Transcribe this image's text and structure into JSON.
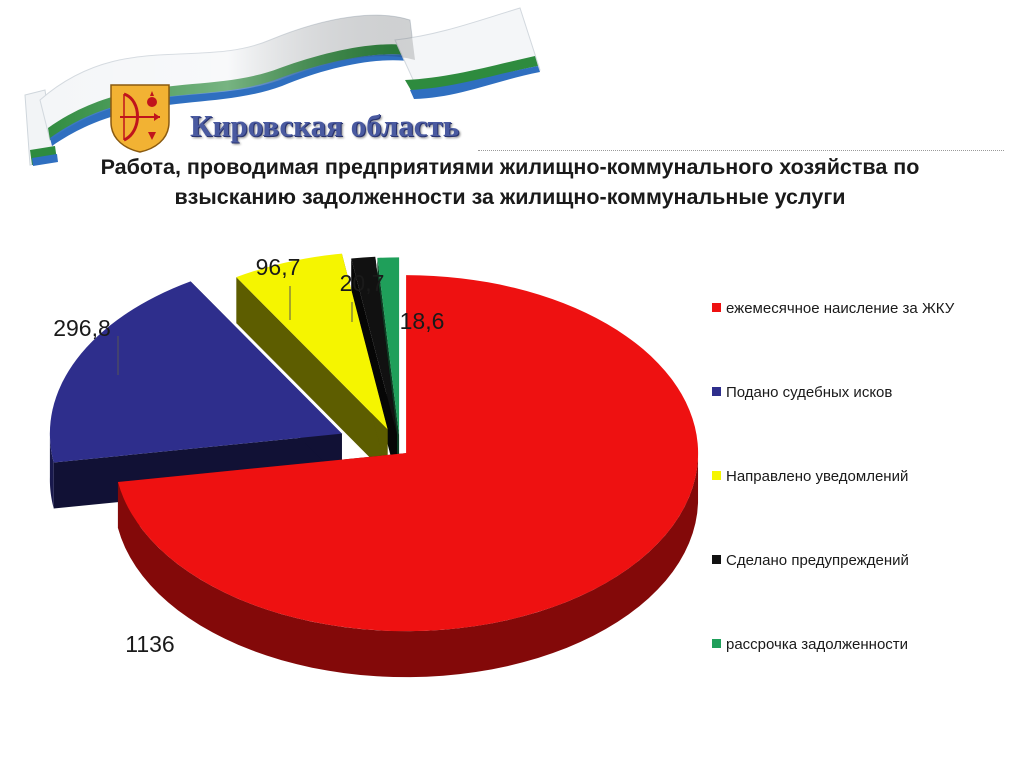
{
  "header": {
    "org_name": "Кировская область",
    "emblem_icon": "kirov-coat-of-arms-icon",
    "ribbon_icon": "flag-ribbon-icon",
    "ribbon_colors": [
      "#ffffff",
      "#2e8b3e",
      "#2f6fc0"
    ]
  },
  "chart_data": {
    "type": "pie",
    "title": "Работа, проводимая предприятиями жилищно-коммунального хозяйства по взысканию задолженности за жилищно-коммунальные услуги",
    "categories": [
      "ежемесячное наисление за ЖКУ",
      "Подано судебных исков",
      "Направлено уведомлений",
      "Сделано предупреждений",
      "рассрочка задолженности"
    ],
    "values": [
      1136,
      296.8,
      96.7,
      20.7,
      18.6
    ],
    "value_labels": [
      "1136",
      "296,8",
      "96,7",
      "20,7",
      "18,6"
    ],
    "colors": [
      "#ee1111",
      "#2e2e8c",
      "#f5f500",
      "#111111",
      "#1f9f5a"
    ],
    "exploded": true,
    "three_d": true,
    "legend_position": "right"
  }
}
